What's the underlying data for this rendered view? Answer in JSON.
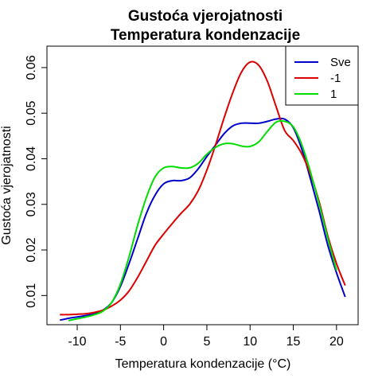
{
  "chart_data": {
    "type": "line",
    "title": "Gustoća vjerojatnosti",
    "subtitle": "Temperatura kondenzacije",
    "xlabel": "Temperatura kondenzacije (°C)",
    "ylabel": "Gustoća vjerojatnosti",
    "xlim": [
      -13.5,
      22.5
    ],
    "ylim": [
      0.0036,
      0.0647
    ],
    "xticks": [
      -10,
      -5,
      0,
      5,
      10,
      15,
      20
    ],
    "yticks": [
      0.01,
      0.02,
      0.03,
      0.04,
      0.05,
      0.06
    ],
    "xtick_labels": [
      "-10",
      "-5",
      "0",
      "5",
      "10",
      "15",
      "20"
    ],
    "ytick_labels": [
      "0.01",
      "0.02",
      "0.03",
      "0.04",
      "0.05",
      "0.06"
    ],
    "grid": false,
    "legend": "top-right",
    "series": [
      {
        "name": "Sve",
        "color": "#0000cc",
        "x": [
          -12,
          -11,
          -10,
          -9,
          -8,
          -7,
          -6,
          -5,
          -4,
          -3,
          -2,
          -1,
          0,
          1,
          2,
          3,
          4,
          5,
          6,
          7,
          8,
          9,
          10,
          11,
          12,
          13,
          14,
          15,
          16,
          17,
          18,
          19,
          20,
          21
        ],
        "y": [
          0.0046,
          0.005,
          0.0053,
          0.0056,
          0.006,
          0.0068,
          0.0085,
          0.012,
          0.017,
          0.0225,
          0.028,
          0.032,
          0.0345,
          0.0352,
          0.0352,
          0.0358,
          0.0378,
          0.0405,
          0.043,
          0.0455,
          0.0472,
          0.0478,
          0.0478,
          0.0478,
          0.0482,
          0.0487,
          0.0487,
          0.0468,
          0.042,
          0.0355,
          0.0285,
          0.021,
          0.015,
          0.0097
        ]
      },
      {
        "name": "-1",
        "color": "#dd0000",
        "x": [
          -12,
          -11,
          -10,
          -9,
          -8,
          -7,
          -6,
          -5,
          -4,
          -3,
          -2,
          -1,
          0,
          1,
          2,
          3,
          4,
          5,
          6,
          7,
          8,
          9,
          10,
          11,
          12,
          13,
          14,
          15,
          16,
          17,
          18,
          19,
          20,
          21
        ],
        "y": [
          0.0058,
          0.0058,
          0.0059,
          0.006,
          0.0063,
          0.0068,
          0.0077,
          0.009,
          0.011,
          0.014,
          0.0175,
          0.021,
          0.0235,
          0.0258,
          0.028,
          0.03,
          0.033,
          0.0375,
          0.043,
          0.049,
          0.0545,
          0.059,
          0.0612,
          0.0605,
          0.057,
          0.0515,
          0.0462,
          0.044,
          0.041,
          0.0365,
          0.0305,
          0.023,
          0.017,
          0.0122
        ]
      },
      {
        "name": "1",
        "color": "#00dd00",
        "x": [
          -11,
          -10,
          -9,
          -8,
          -7,
          -6,
          -5,
          -4,
          -3,
          -2,
          -1,
          0,
          1,
          2,
          3,
          4,
          5,
          6,
          7,
          8,
          9,
          10,
          11,
          12,
          13,
          14,
          15,
          16,
          17,
          18,
          19,
          20
        ],
        "y": [
          0.0045,
          0.0049,
          0.0053,
          0.0058,
          0.0066,
          0.0085,
          0.0125,
          0.0185,
          0.0255,
          0.0315,
          0.036,
          0.038,
          0.0383,
          0.038,
          0.038,
          0.039,
          0.041,
          0.0425,
          0.0433,
          0.0433,
          0.0428,
          0.0427,
          0.0437,
          0.046,
          0.048,
          0.0482,
          0.047,
          0.043,
          0.037,
          0.03,
          0.0225,
          0.0155
        ]
      }
    ]
  }
}
